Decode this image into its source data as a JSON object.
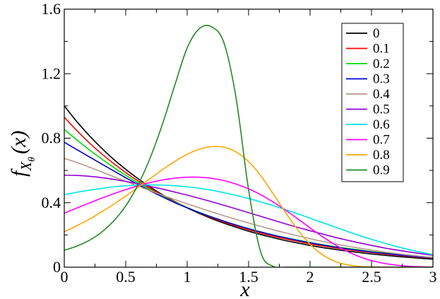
{
  "chart_data": {
    "type": "line",
    "xlabel": "x",
    "ylabel": {
      "main": "f",
      "sub": "X",
      "subsub": "θ",
      "arg": "(x)"
    },
    "xlim": [
      0,
      3
    ],
    "ylim": [
      0,
      1.6
    ],
    "x_ticks": [
      0,
      0.5,
      1,
      1.5,
      2,
      2.5,
      3
    ],
    "x_tick_labels": [
      "0",
      "0.5",
      "1",
      "1.5",
      "2",
      "2.5",
      "3"
    ],
    "y_ticks": [
      0,
      0.4,
      0.8,
      1.2,
      1.6
    ],
    "y_tick_labels": [
      "0",
      "0.4",
      "0.8",
      "1.2",
      "1.6"
    ],
    "grid": false,
    "legend_position": "top-right",
    "x": [
      0,
      0.1,
      0.2,
      0.3,
      0.4,
      0.5,
      0.6,
      0.7,
      0.8,
      0.9,
      1.0,
      1.1,
      1.2,
      1.3,
      1.4,
      1.5,
      1.6,
      1.7,
      1.8,
      1.9,
      2.0,
      2.1,
      2.2,
      2.3,
      2.4,
      2.5,
      2.6,
      2.7,
      2.8,
      2.9,
      3.0
    ],
    "series": [
      {
        "name": "0",
        "color": "#000000",
        "values": [
          1.0,
          0.905,
          0.819,
          0.741,
          0.67,
          0.607,
          0.549,
          0.497,
          0.449,
          0.407,
          0.368,
          0.333,
          0.301,
          0.273,
          0.247,
          0.223,
          0.202,
          0.183,
          0.165,
          0.15,
          0.135,
          0.122,
          0.111,
          0.1,
          0.091,
          0.082,
          0.074,
          0.067,
          0.061,
          0.055,
          0.05
        ]
      },
      {
        "name": "0.1",
        "color": "#ff0000",
        "values": [
          0.93,
          0.849,
          0.774,
          0.706,
          0.644,
          0.587,
          0.535,
          0.488,
          0.445,
          0.405,
          0.37,
          0.337,
          0.307,
          0.28,
          0.255,
          0.232,
          0.211,
          0.192,
          0.175,
          0.16,
          0.145,
          0.132,
          0.12,
          0.11,
          0.1,
          0.091,
          0.082,
          0.075,
          0.068,
          0.062,
          0.056
        ]
      },
      {
        "name": "0.2",
        "color": "#00dd00",
        "values": [
          0.855,
          0.791,
          0.73,
          0.674,
          0.62,
          0.57,
          0.523,
          0.48,
          0.44,
          0.403,
          0.37,
          0.339,
          0.311,
          0.285,
          0.261,
          0.239,
          0.219,
          0.2,
          0.183,
          0.168,
          0.153,
          0.14,
          0.128,
          0.117,
          0.107,
          0.097,
          0.089,
          0.081,
          0.074,
          0.067,
          0.061
        ]
      },
      {
        "name": "0.3",
        "color": "#0000cc",
        "values": [
          0.775,
          0.73,
          0.686,
          0.642,
          0.598,
          0.555,
          0.513,
          0.473,
          0.436,
          0.4,
          0.368,
          0.338,
          0.311,
          0.285,
          0.261,
          0.239,
          0.218,
          0.199,
          0.182,
          0.166,
          0.151,
          0.138,
          0.125,
          0.114,
          0.104,
          0.094,
          0.086,
          0.078,
          0.071,
          0.064,
          0.058
        ]
      },
      {
        "name": "0.4",
        "color": "#b8998c",
        "values": [
          0.675,
          0.65,
          0.622,
          0.592,
          0.562,
          0.533,
          0.503,
          0.474,
          0.446,
          0.419,
          0.393,
          0.368,
          0.343,
          0.319,
          0.296,
          0.274,
          0.253,
          0.232,
          0.213,
          0.194,
          0.177,
          0.16,
          0.145,
          0.131,
          0.118,
          0.106,
          0.095,
          0.085,
          0.076,
          0.068,
          0.06
        ]
      },
      {
        "name": "0.5",
        "color": "#9400d3",
        "values": [
          0.57,
          0.569,
          0.564,
          0.556,
          0.545,
          0.532,
          0.517,
          0.501,
          0.484,
          0.466,
          0.447,
          0.427,
          0.406,
          0.384,
          0.361,
          0.338,
          0.315,
          0.292,
          0.269,
          0.247,
          0.226,
          0.206,
          0.186,
          0.168,
          0.151,
          0.135,
          0.12,
          0.107,
          0.095,
          0.084,
          0.074
        ]
      },
      {
        "name": "0.6",
        "color": "#00e5e5",
        "values": [
          0.45,
          0.464,
          0.477,
          0.488,
          0.498,
          0.505,
          0.51,
          0.511,
          0.509,
          0.505,
          0.498,
          0.489,
          0.477,
          0.462,
          0.445,
          0.426,
          0.405,
          0.382,
          0.357,
          0.331,
          0.304,
          0.277,
          0.25,
          0.223,
          0.197,
          0.173,
          0.15,
          0.129,
          0.11,
          0.093,
          0.078
        ]
      },
      {
        "name": "0.7",
        "color": "#ff00ff",
        "values": [
          0.335,
          0.366,
          0.397,
          0.427,
          0.455,
          0.481,
          0.505,
          0.525,
          0.541,
          0.552,
          0.558,
          0.558,
          0.551,
          0.537,
          0.515,
          0.486,
          0.449,
          0.404,
          0.354,
          0.3,
          0.244,
          0.19,
          0.141,
          0.099,
          0.066,
          0.041,
          0.024,
          0.013,
          0.006,
          0.003,
          0.001
        ]
      },
      {
        "name": "0.8",
        "color": "#ffa500",
        "values": [
          0.22,
          0.256,
          0.296,
          0.341,
          0.389,
          0.441,
          0.495,
          0.55,
          0.605,
          0.656,
          0.7,
          0.732,
          0.748,
          0.744,
          0.714,
          0.655,
          0.566,
          0.455,
          0.34,
          0.232,
          0.143,
          0.078,
          0.037,
          0.015,
          0.005,
          0.002,
          0.0,
          0.0,
          0.0,
          0.0,
          0.0
        ]
      },
      {
        "name": "0.9",
        "color": "#228b22",
        "values": [
          0.105,
          0.13,
          0.165,
          0.215,
          0.285,
          0.38,
          0.51,
          0.68,
          0.89,
          1.13,
          1.36,
          1.48,
          1.49,
          1.39,
          1.04,
          0.48,
          0.09,
          0.005,
          0.0,
          0.0,
          0.0,
          0.0,
          0.0,
          0.0,
          0.0,
          0.0,
          0.0,
          0.0,
          0.0,
          0.0,
          0.0
        ]
      }
    ]
  }
}
